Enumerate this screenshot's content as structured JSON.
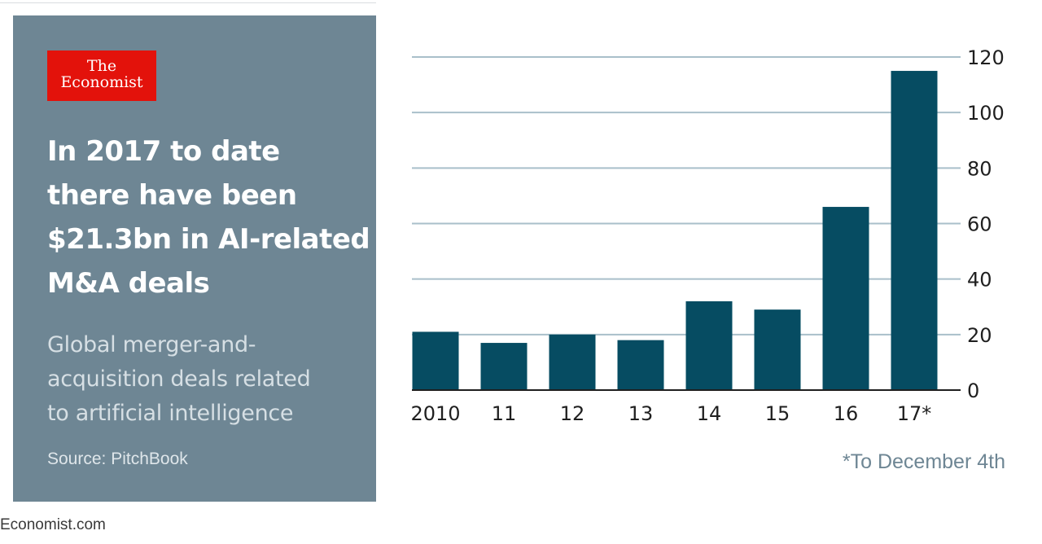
{
  "brand": {
    "logo_line1": "The",
    "logo_line2": "Economist",
    "footer": "Economist.com"
  },
  "panel": {
    "headline": [
      "In 2017 to date",
      "there have been",
      "$21.3bn in AI-related",
      "M&A deals"
    ],
    "subtitle": [
      "Global merger-and-",
      "acquisition deals related",
      "to artificial intelligence"
    ],
    "source": "Source: PitchBook"
  },
  "colors": {
    "panel": "#6e8694",
    "bar": "#064c62",
    "grid": "#a9bfca",
    "logo": "#e3120b",
    "note": "#6e8694"
  },
  "chart_data": {
    "type": "bar",
    "categories": [
      "2010",
      "11",
      "12",
      "13",
      "14",
      "15",
      "16",
      "17*"
    ],
    "values": [
      21,
      17,
      20,
      18,
      32,
      29,
      66,
      115
    ],
    "ylim": [
      0,
      120
    ],
    "yticks": [
      0,
      20,
      40,
      60,
      80,
      100,
      120
    ],
    "yaxis_side": "right",
    "grid": true,
    "note": "*To December 4th"
  }
}
